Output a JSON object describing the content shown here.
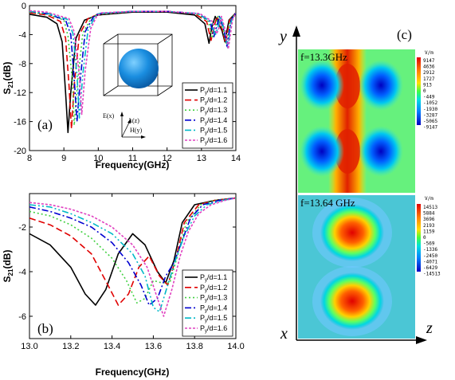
{
  "chart_data": [
    {
      "type": "line",
      "panel_label": "(a)",
      "xlabel": "Frequency(GHz)",
      "ylabel_main": "S",
      "ylabel_sub": "21",
      "ylabel_unit": "(dB)",
      "xlim": [
        8,
        14
      ],
      "ylim": [
        -20,
        0
      ],
      "xticks": [
        "8",
        "9",
        "10",
        "11",
        "12",
        "13",
        "14"
      ],
      "yticks": [
        "0",
        "-4",
        "-8",
        "-12",
        "-16",
        "-20"
      ],
      "legend_position": "bottom-right",
      "inset_labels": {
        "E": "E(x)",
        "k": "k(z)",
        "H": "H(y)"
      },
      "series": [
        {
          "name": "P_y/d=1.1",
          "color": "#000000",
          "dash": "",
          "values": [
            [
              8,
              -1.2
            ],
            [
              8.5,
              -1.6
            ],
            [
              8.8,
              -2.5
            ],
            [
              8.95,
              -5
            ],
            [
              9.05,
              -12
            ],
            [
              9.12,
              -17.5
            ],
            [
              9.2,
              -12
            ],
            [
              9.35,
              -4.5
            ],
            [
              9.6,
              -2
            ],
            [
              10,
              -1.3
            ],
            [
              11,
              -0.9
            ],
            [
              12,
              -0.9
            ],
            [
              12.8,
              -1.3
            ],
            [
              13.1,
              -2.5
            ],
            [
              13.22,
              -5.2
            ],
            [
              13.3,
              -3
            ],
            [
              13.4,
              -1.5
            ],
            [
              13.6,
              -3.5
            ],
            [
              13.68,
              -5
            ],
            [
              13.8,
              -2
            ],
            [
              14,
              -1
            ]
          ]
        },
        {
          "name": "P_y/d=1.2",
          "color": "#e00000",
          "dash": "8,4",
          "values": [
            [
              8,
              -1
            ],
            [
              8.5,
              -1.3
            ],
            [
              8.9,
              -2.2
            ],
            [
              9.05,
              -4.5
            ],
            [
              9.15,
              -11
            ],
            [
              9.22,
              -17
            ],
            [
              9.3,
              -11
            ],
            [
              9.45,
              -4
            ],
            [
              9.7,
              -1.8
            ],
            [
              10,
              -1.2
            ],
            [
              11,
              -0.8
            ],
            [
              12,
              -0.8
            ],
            [
              12.8,
              -1.1
            ],
            [
              13.15,
              -2.2
            ],
            [
              13.28,
              -4.8
            ],
            [
              13.36,
              -3
            ],
            [
              13.45,
              -1.5
            ],
            [
              13.62,
              -3.5
            ],
            [
              13.7,
              -5.2
            ],
            [
              13.82,
              -2
            ],
            [
              14,
              -1
            ]
          ]
        },
        {
          "name": "P_y/d=1.3",
          "color": "#40d040",
          "dash": "2,3",
          "values": [
            [
              8,
              -0.9
            ],
            [
              8.5,
              -1.2
            ],
            [
              9,
              -2
            ],
            [
              9.12,
              -4.2
            ],
            [
              9.25,
              -10.5
            ],
            [
              9.3,
              -16.5
            ],
            [
              9.4,
              -10.5
            ],
            [
              9.55,
              -3.8
            ],
            [
              9.8,
              -1.7
            ],
            [
              10,
              -1.2
            ],
            [
              11,
              -0.8
            ],
            [
              12,
              -0.8
            ],
            [
              12.85,
              -1.1
            ],
            [
              13.2,
              -2.2
            ],
            [
              13.32,
              -4.5
            ],
            [
              13.4,
              -3
            ],
            [
              13.48,
              -1.5
            ],
            [
              13.64,
              -3.5
            ],
            [
              13.72,
              -5.4
            ],
            [
              13.84,
              -2
            ],
            [
              14,
              -1
            ]
          ]
        },
        {
          "name": "P_y/d=1.4",
          "color": "#0000d0",
          "dash": "8,3,2,3",
          "values": [
            [
              8,
              -0.8
            ],
            [
              8.5,
              -1.1
            ],
            [
              9.05,
              -2
            ],
            [
              9.2,
              -4
            ],
            [
              9.3,
              -10
            ],
            [
              9.38,
              -16
            ],
            [
              9.48,
              -10
            ],
            [
              9.62,
              -3.6
            ],
            [
              9.85,
              -1.6
            ],
            [
              10,
              -1.1
            ],
            [
              11,
              -0.8
            ],
            [
              12,
              -0.8
            ],
            [
              12.9,
              -1.1
            ],
            [
              13.25,
              -2.2
            ],
            [
              13.36,
              -4.3
            ],
            [
              13.44,
              -3
            ],
            [
              13.52,
              -1.5
            ],
            [
              13.66,
              -3.5
            ],
            [
              13.74,
              -5.6
            ],
            [
              13.86,
              -2
            ],
            [
              14,
              -1
            ]
          ]
        },
        {
          "name": "P_y/d=1.5",
          "color": "#00b8c8",
          "dash": "8,3,2,3,2,3",
          "values": [
            [
              8,
              -0.8
            ],
            [
              8.5,
              -1
            ],
            [
              9.1,
              -1.9
            ],
            [
              9.26,
              -3.8
            ],
            [
              9.38,
              -9.5
            ],
            [
              9.45,
              -15.5
            ],
            [
              9.55,
              -9.5
            ],
            [
              9.7,
              -3.4
            ],
            [
              9.9,
              -1.6
            ],
            [
              10,
              -1.1
            ],
            [
              11,
              -0.8
            ],
            [
              12,
              -0.8
            ],
            [
              12.9,
              -1.1
            ],
            [
              13.28,
              -2.2
            ],
            [
              13.4,
              -4.1
            ],
            [
              13.48,
              -3
            ],
            [
              13.55,
              -1.5
            ],
            [
              13.68,
              -3.5
            ],
            [
              13.76,
              -5.8
            ],
            [
              13.88,
              -2
            ],
            [
              14,
              -1
            ]
          ]
        },
        {
          "name": "P_y/d=1.6",
          "color": "#e040c0",
          "dash": "3,2",
          "values": [
            [
              8,
              -0.7
            ],
            [
              8.5,
              -0.9
            ],
            [
              9.15,
              -1.8
            ],
            [
              9.3,
              -3.6
            ],
            [
              9.44,
              -9
            ],
            [
              9.52,
              -15
            ],
            [
              9.62,
              -9
            ],
            [
              9.78,
              -3.2
            ],
            [
              9.95,
              -1.5
            ],
            [
              10.1,
              -1
            ],
            [
              11,
              -0.8
            ],
            [
              12,
              -0.8
            ],
            [
              12.95,
              -1.1
            ],
            [
              13.32,
              -2.2
            ],
            [
              13.44,
              -3.9
            ],
            [
              13.52,
              -3
            ],
            [
              13.58,
              -1.5
            ],
            [
              13.7,
              -3.5
            ],
            [
              13.78,
              -6
            ],
            [
              13.9,
              -2
            ],
            [
              14,
              -1
            ]
          ]
        }
      ]
    },
    {
      "type": "line",
      "panel_label": "(b)",
      "xlabel": "Frequency(GHz)",
      "ylabel_main": "S",
      "ylabel_sub": "21",
      "ylabel_unit": "(dB)",
      "xlim": [
        13.0,
        14.0
      ],
      "ylim": [
        -7,
        -0.5
      ],
      "xticks": [
        "13.0",
        "13.2",
        "13.4",
        "13.6",
        "13.8",
        "14.0"
      ],
      "yticks": [
        "-2",
        "-4",
        "-6"
      ],
      "legend_position": "bottom-right",
      "series": [
        {
          "name": "P_y/d=1.1",
          "color": "#000000",
          "dash": "",
          "values": [
            [
              13,
              -2.3
            ],
            [
              13.1,
              -2.8
            ],
            [
              13.2,
              -3.8
            ],
            [
              13.27,
              -5
            ],
            [
              13.32,
              -5.5
            ],
            [
              13.37,
              -4.8
            ],
            [
              13.43,
              -3.2
            ],
            [
              13.5,
              -2.3
            ],
            [
              13.56,
              -2.8
            ],
            [
              13.62,
              -4
            ],
            [
              13.66,
              -4.5
            ],
            [
              13.7,
              -3.5
            ],
            [
              13.74,
              -1.8
            ],
            [
              13.8,
              -1
            ],
            [
              13.9,
              -0.8
            ],
            [
              14,
              -0.7
            ]
          ]
        },
        {
          "name": "P_y/d=1.2",
          "color": "#e00000",
          "dash": "8,4",
          "values": [
            [
              13,
              -1.6
            ],
            [
              13.1,
              -1.9
            ],
            [
              13.2,
              -2.4
            ],
            [
              13.3,
              -3.2
            ],
            [
              13.38,
              -4.6
            ],
            [
              13.43,
              -5.5
            ],
            [
              13.48,
              -5
            ],
            [
              13.53,
              -3.8
            ],
            [
              13.58,
              -3.3
            ],
            [
              13.63,
              -4.2
            ],
            [
              13.67,
              -4.6
            ],
            [
              13.71,
              -3.4
            ],
            [
              13.75,
              -1.8
            ],
            [
              13.82,
              -1
            ],
            [
              13.9,
              -0.8
            ],
            [
              14,
              -0.7
            ]
          ]
        },
        {
          "name": "P_y/d=1.3",
          "color": "#40d040",
          "dash": "2,3",
          "values": [
            [
              13,
              -1.3
            ],
            [
              13.1,
              -1.5
            ],
            [
              13.2,
              -1.9
            ],
            [
              13.3,
              -2.5
            ],
            [
              13.4,
              -3.4
            ],
            [
              13.47,
              -4.4
            ],
            [
              13.52,
              -5.4
            ],
            [
              13.56,
              -5.2
            ],
            [
              13.6,
              -4.4
            ],
            [
              13.64,
              -4.5
            ],
            [
              13.68,
              -4.5
            ],
            [
              13.72,
              -3.2
            ],
            [
              13.76,
              -1.8
            ],
            [
              13.83,
              -1
            ],
            [
              13.9,
              -0.8
            ],
            [
              14,
              -0.7
            ]
          ]
        },
        {
          "name": "P_y/d=1.4",
          "color": "#0000d0",
          "dash": "8,3,2,3",
          "values": [
            [
              13,
              -1.1
            ],
            [
              13.1,
              -1.3
            ],
            [
              13.2,
              -1.6
            ],
            [
              13.3,
              -2
            ],
            [
              13.4,
              -2.7
            ],
            [
              13.48,
              -3.6
            ],
            [
              13.54,
              -4.6
            ],
            [
              13.58,
              -5.5
            ],
            [
              13.62,
              -5.2
            ],
            [
              13.66,
              -4.2
            ],
            [
              13.7,
              -3.6
            ],
            [
              13.74,
              -2.6
            ],
            [
              13.78,
              -1.6
            ],
            [
              13.84,
              -1
            ],
            [
              13.92,
              -0.8
            ],
            [
              14,
              -0.7
            ]
          ]
        },
        {
          "name": "P_y/d=1.5",
          "color": "#00b8c8",
          "dash": "8,3,2,3,2,3",
          "values": [
            [
              13,
              -1
            ],
            [
              13.1,
              -1.1
            ],
            [
              13.2,
              -1.4
            ],
            [
              13.3,
              -1.8
            ],
            [
              13.4,
              -2.3
            ],
            [
              13.5,
              -3.2
            ],
            [
              13.56,
              -4.2
            ],
            [
              13.6,
              -5.6
            ],
            [
              13.63,
              -5.8
            ],
            [
              13.67,
              -4.6
            ],
            [
              13.71,
              -3.4
            ],
            [
              13.75,
              -2.4
            ],
            [
              13.8,
              -1.5
            ],
            [
              13.86,
              -1
            ],
            [
              13.94,
              -0.8
            ],
            [
              14,
              -0.7
            ]
          ]
        },
        {
          "name": "P_y/d=1.6",
          "color": "#e040c0",
          "dash": "3,2",
          "values": [
            [
              13,
              -0.9
            ],
            [
              13.1,
              -1
            ],
            [
              13.2,
              -1.2
            ],
            [
              13.3,
              -1.5
            ],
            [
              13.4,
              -2
            ],
            [
              13.5,
              -2.8
            ],
            [
              13.57,
              -3.8
            ],
            [
              13.62,
              -5.2
            ],
            [
              13.65,
              -6
            ],
            [
              13.69,
              -4.8
            ],
            [
              13.73,
              -3.3
            ],
            [
              13.77,
              -2.2
            ],
            [
              13.82,
              -1.4
            ],
            [
              13.88,
              -1
            ],
            [
              13.95,
              -0.8
            ],
            [
              14,
              -0.7
            ]
          ]
        }
      ]
    },
    {
      "type": "heatmap",
      "panel_label": "(c)",
      "axis_y": "y",
      "axis_x": "x",
      "axis_z": "z",
      "fields": [
        {
          "label": "f=13.3GHz",
          "unit": "V/m",
          "scale": [
            "9147",
            "4636",
            "2912",
            "1727",
            "913",
            "0",
            "-449",
            "-1052",
            "-1930",
            "-3287",
            "-5065",
            "-9147"
          ]
        },
        {
          "label": "f=13.64 GHz",
          "unit": "V/m",
          "scale": [
            "14513",
            "5884",
            "3696",
            "2193",
            "1159",
            "0",
            "-569",
            "-1336",
            "-2450",
            "-4071",
            "-6429",
            "-14513"
          ]
        }
      ]
    }
  ]
}
